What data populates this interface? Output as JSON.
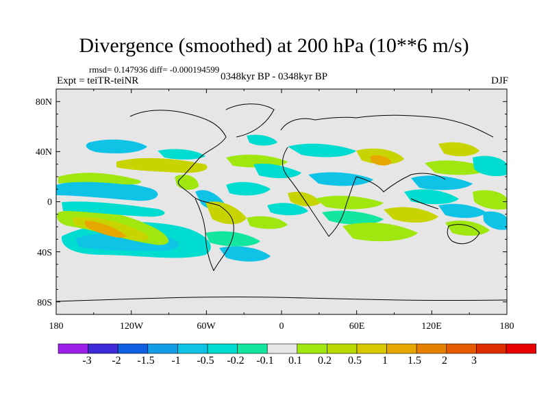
{
  "title": "Divergence (smoothed) at 200 hPa (10**6 m/s)",
  "stats": "rmsd= 0.147936 diff= -0.000194599",
  "experiment": "Expt = teiTR-teiNR",
  "period": "0348kyr BP - 0348kyr BP",
  "season": "DJF",
  "map": {
    "projection": "cylindrical equidistant",
    "background_color": "#e6e6e6",
    "lat_labels": [
      "80N",
      "40N",
      "0",
      "40S",
      "80S"
    ],
    "lat_values": [
      80,
      40,
      0,
      -40,
      -80
    ],
    "lon_labels": [
      "180",
      "120W",
      "60W",
      "0",
      "60E",
      "120E",
      "180"
    ],
    "lon_values": [
      -180,
      -120,
      -60,
      0,
      60,
      120,
      180
    ]
  },
  "colorbar": {
    "colors": [
      "#9b1fe8",
      "#3e29d6",
      "#0f5fe0",
      "#139de6",
      "#0fc3e6",
      "#00dcd0",
      "#13e6a0",
      "#e6e6e6",
      "#a0e60f",
      "#b8d800",
      "#d8c800",
      "#e6a800",
      "#e68000",
      "#e65a00",
      "#e02d00",
      "#e60000"
    ],
    "labels": [
      "-3",
      "-2",
      "-1.5",
      "-1",
      "-0.5",
      "-0.2",
      "-0.1",
      "0.1",
      "0.2",
      "0.5",
      "1",
      "1.5",
      "2",
      "3"
    ]
  },
  "field_colors": {
    "neg_weak": "#00dcd0",
    "neg_mid": "#0fc3e6",
    "pos_weak": "#a0e60f",
    "pos_mid": "#c8d400",
    "pos_strong": "#e6a800",
    "pos_max": "#e67800"
  }
}
